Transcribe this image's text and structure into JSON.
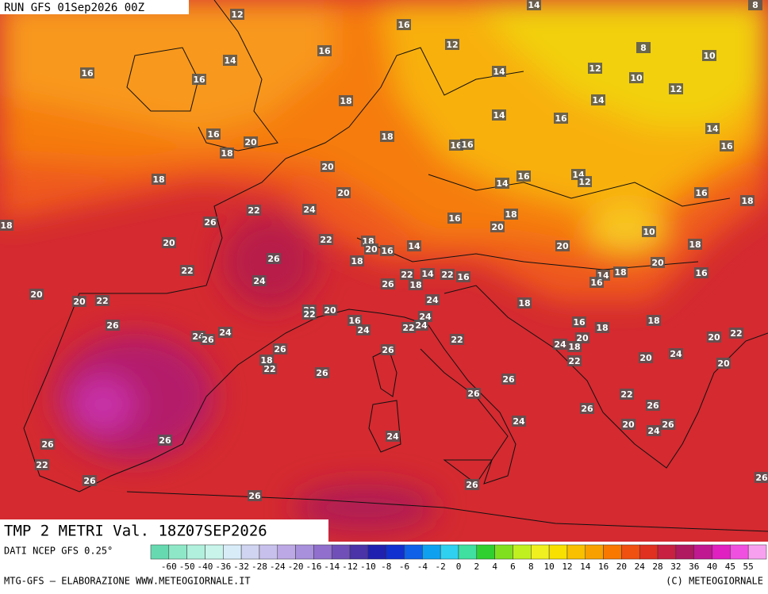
{
  "header": {
    "run": "RUN GFS 01Sep2026 00Z"
  },
  "map": {
    "title": "TMP 2 METRI Val. 18Z07SEP2026",
    "temperature_labels": [
      12,
      14,
      8,
      16,
      12,
      16,
      14,
      8,
      10,
      16,
      16,
      12,
      14,
      10,
      12,
      18,
      14,
      14,
      16,
      14,
      16,
      20,
      18,
      16,
      16,
      16,
      18,
      20,
      18,
      14,
      16,
      14,
      12,
      20,
      16,
      18,
      22,
      24,
      26,
      16,
      18,
      18,
      20,
      10,
      22,
      18,
      20,
      16,
      14,
      20,
      18,
      20,
      26,
      18,
      20,
      22,
      22,
      14,
      22,
      16,
      18,
      14,
      16,
      16,
      24,
      26,
      18,
      20,
      20,
      22,
      18,
      24,
      22,
      22,
      20,
      26,
      16,
      24,
      22,
      24,
      24,
      16,
      18,
      18,
      20,
      22,
      24,
      24,
      26,
      22,
      24,
      18,
      20,
      26,
      26,
      24,
      22,
      20,
      20,
      18,
      22,
      26,
      26,
      26,
      22,
      26,
      26,
      24,
      20,
      24,
      26,
      26,
      24,
      26,
      22,
      26,
      26,
      26,
      26,
      26
    ]
  },
  "footer": {
    "source": "DATI NCEP GFS 0.25°",
    "credit": "MTG-GFS — ELABORAZIONE WWW.METEOGIORNALE.IT",
    "copyright": "(C) METEOGIORNALE"
  },
  "colorbar": {
    "ticks": [
      -60,
      -50,
      -40,
      -36,
      -32,
      -28,
      -24,
      -20,
      -16,
      -14,
      -12,
      -10,
      -8,
      -6,
      -4,
      -2,
      0,
      2,
      4,
      6,
      8,
      10,
      12,
      14,
      16,
      20,
      24,
      28,
      32,
      36,
      40,
      45,
      55
    ],
    "colors": [
      "#66d9b0",
      "#8ee8c8",
      "#b0f0dc",
      "#c8f4ea",
      "#d8ecf8",
      "#d0d4f0",
      "#c8c0ec",
      "#bca8e4",
      "#a890dc",
      "#9070cc",
      "#7050b8",
      "#4a34a8",
      "#2020b0",
      "#1030d0",
      "#1060e8",
      "#10a0f0",
      "#30d0f0",
      "#40e0a0",
      "#30d030",
      "#80e020",
      "#c0f020",
      "#f0f020",
      "#f8e000",
      "#f8c000",
      "#f8a000",
      "#f87800",
      "#f05010",
      "#e03020",
      "#c82040",
      "#b01860",
      "#c01890",
      "#e020c0",
      "#f050e0",
      "#f8a0f0"
    ]
  }
}
